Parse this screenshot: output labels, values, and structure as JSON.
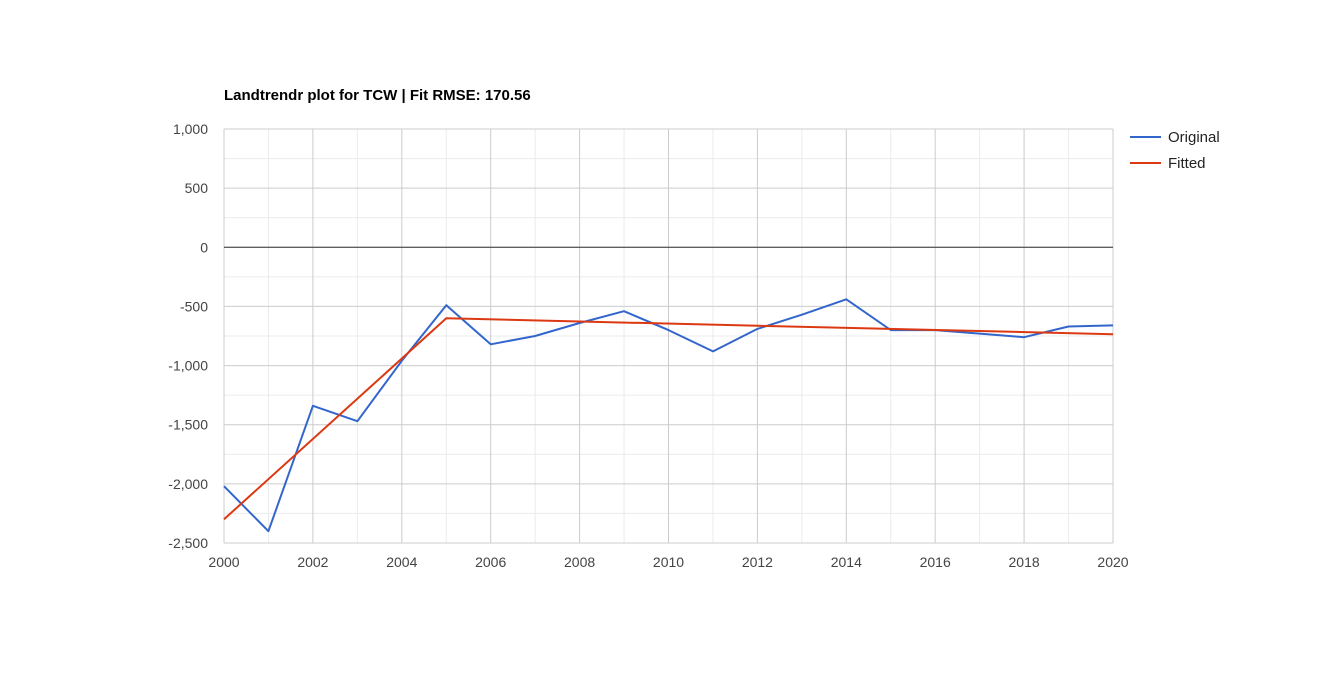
{
  "chart_data": {
    "type": "line",
    "title": "Landtrendr plot for TCW | Fit RMSE: 170.56",
    "xlabel": "",
    "ylabel": "",
    "xlim": [
      2000,
      2020
    ],
    "ylim": [
      -2500,
      1000
    ],
    "x_ticks": [
      2000,
      2002,
      2004,
      2006,
      2008,
      2010,
      2012,
      2014,
      2016,
      2018,
      2020
    ],
    "x_tick_labels": [
      "2000",
      "2002",
      "2004",
      "2006",
      "2008",
      "2010",
      "2012",
      "2014",
      "2016",
      "2018",
      "2020"
    ],
    "y_ticks": [
      1000,
      500,
      0,
      -500,
      -1000,
      -1500,
      -2000,
      -2500
    ],
    "y_tick_labels": [
      "1,000",
      "500",
      "0",
      "-500",
      "-1,000",
      "-1,500",
      "-2,000",
      "-2,500"
    ],
    "grid": true,
    "legend_position": "right",
    "series": [
      {
        "name": "Original",
        "color": "#3366cc",
        "x": [
          2000,
          2001,
          2002,
          2003,
          2004,
          2005,
          2006,
          2007,
          2008,
          2009,
          2010,
          2011,
          2012,
          2013,
          2014,
          2015,
          2016,
          2017,
          2018,
          2019,
          2020
        ],
        "y": [
          -2020,
          -2400,
          -1340,
          -1470,
          -960,
          -490,
          -820,
          -750,
          -640,
          -540,
          -700,
          -880,
          -690,
          -570,
          -440,
          -700,
          -700,
          -730,
          -760,
          -670,
          -660
        ]
      },
      {
        "name": "Fitted",
        "color": "#dc3912",
        "x": [
          2000,
          2005,
          2020
        ],
        "y": [
          -2300,
          -600,
          -735
        ]
      }
    ]
  }
}
